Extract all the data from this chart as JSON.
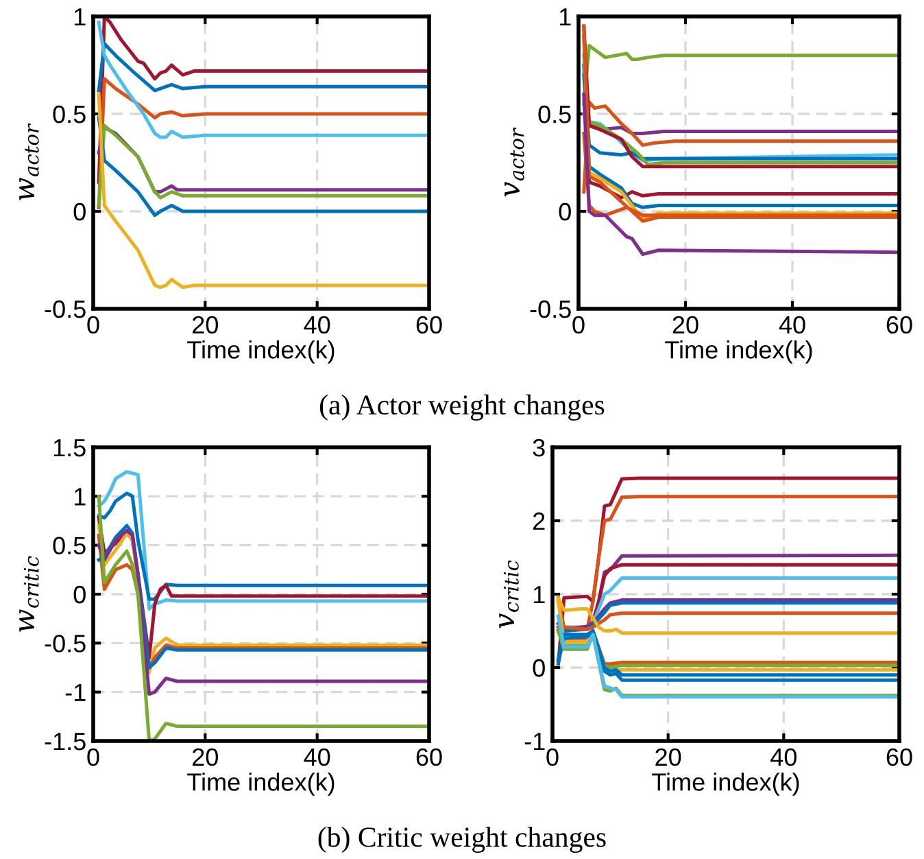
{
  "chart_data": [
    {
      "type": "line",
      "ylabel": "w$_{actor}$",
      "xlabel": "Time index(k)",
      "annotations": [
        "(a) Actor weight changes"
      ],
      "xlim": [
        0,
        60
      ],
      "xticks": [
        0,
        20,
        40,
        60
      ],
      "ylim": [
        -0.5,
        1
      ],
      "yticks": [
        -0.5,
        0,
        0.5,
        1
      ],
      "grid": true,
      "line_style": "solid",
      "series": [
        {
          "color": "#a2142f",
          "x": [
            1,
            2,
            3,
            5,
            8,
            9,
            11,
            12,
            13,
            14,
            16,
            18,
            20,
            60
          ],
          "values": [
            0.15,
            1.0,
            0.97,
            0.88,
            0.77,
            0.76,
            0.68,
            0.71,
            0.72,
            0.75,
            0.7,
            0.72,
            0.72,
            0.72
          ]
        },
        {
          "color": "#0072bd",
          "x": [
            1,
            2,
            4,
            7,
            11,
            12,
            14,
            16,
            20,
            60
          ],
          "values": [
            0.62,
            0.86,
            0.8,
            0.72,
            0.62,
            0.63,
            0.65,
            0.63,
            0.64,
            0.64
          ]
        },
        {
          "color": "#d95319",
          "x": [
            1,
            2,
            4,
            8,
            11,
            12,
            14,
            16,
            20,
            60
          ],
          "values": [
            0.02,
            0.68,
            0.63,
            0.55,
            0.48,
            0.5,
            0.51,
            0.49,
            0.5,
            0.5
          ]
        },
        {
          "color": "#4dbeee",
          "x": [
            1,
            2,
            3,
            6,
            9,
            11,
            12,
            13,
            14,
            16,
            20,
            60
          ],
          "values": [
            0.97,
            0.8,
            0.75,
            0.62,
            0.5,
            0.4,
            0.38,
            0.38,
            0.41,
            0.38,
            0.39,
            0.39
          ]
        },
        {
          "color": "#7e2f8e",
          "x": [
            1,
            2,
            4,
            8,
            11,
            12,
            14,
            15,
            20,
            60
          ],
          "values": [
            0.3,
            0.43,
            0.4,
            0.28,
            0.1,
            0.1,
            0.13,
            0.11,
            0.11,
            0.11
          ]
        },
        {
          "color": "#77ac30",
          "x": [
            1,
            2,
            4,
            8,
            11,
            12,
            14,
            16,
            20,
            60
          ],
          "values": [
            0.03,
            0.44,
            0.39,
            0.28,
            0.1,
            0.07,
            0.1,
            0.08,
            0.08,
            0.08
          ]
        },
        {
          "color": "#0072bd",
          "x": [
            1,
            2,
            4,
            8,
            11,
            12,
            14,
            16,
            20,
            60
          ],
          "values": [
            0.48,
            0.26,
            0.21,
            0.1,
            -0.02,
            0.0,
            0.03,
            0.0,
            0.0,
            0.0
          ]
        },
        {
          "color": "#edb120",
          "x": [
            1,
            2,
            4,
            8,
            11,
            12,
            13,
            14,
            16,
            18,
            20,
            60
          ],
          "values": [
            0.6,
            0.03,
            -0.05,
            -0.2,
            -0.38,
            -0.39,
            -0.38,
            -0.35,
            -0.39,
            -0.38,
            -0.38,
            -0.38
          ]
        }
      ]
    },
    {
      "type": "line",
      "ylabel": "v$_{actor}$",
      "xlabel": "Time index(k)",
      "xlim": [
        0,
        60
      ],
      "xticks": [
        0,
        20,
        40,
        60
      ],
      "ylim": [
        -0.5,
        1
      ],
      "yticks": [
        -0.5,
        0,
        0.5,
        1
      ],
      "grid": true,
      "line_style": "solid",
      "series": [
        {
          "color": "#77ac30",
          "x": [
            1,
            2,
            3,
            5,
            9,
            10,
            11,
            13,
            16,
            20,
            60
          ],
          "values": [
            0.55,
            0.85,
            0.83,
            0.79,
            0.81,
            0.78,
            0.78,
            0.79,
            0.8,
            0.8,
            0.8
          ]
        },
        {
          "color": "#7e2f8e",
          "x": [
            1,
            2,
            4,
            8,
            10,
            12,
            16,
            20,
            60
          ],
          "values": [
            0.5,
            0.45,
            0.42,
            0.43,
            0.4,
            0.4,
            0.41,
            0.41,
            0.41
          ]
        },
        {
          "color": "#d95319",
          "x": [
            1,
            2,
            3,
            5,
            8,
            10,
            12,
            14,
            18,
            60
          ],
          "values": [
            0.1,
            0.56,
            0.53,
            0.54,
            0.45,
            0.4,
            0.34,
            0.35,
            0.36,
            0.36
          ]
        },
        {
          "color": "#4dbeee",
          "x": [
            1,
            2,
            4,
            7,
            10,
            12,
            16,
            60
          ],
          "values": [
            0.8,
            0.46,
            0.45,
            0.38,
            0.3,
            0.26,
            0.27,
            0.29
          ]
        },
        {
          "color": "#0072bd",
          "x": [
            1,
            2,
            4,
            8,
            10,
            12,
            16,
            60
          ],
          "values": [
            0.7,
            0.34,
            0.3,
            0.29,
            0.3,
            0.27,
            0.27,
            0.27
          ]
        },
        {
          "color": "#77ac30",
          "x": [
            1,
            2,
            4,
            8,
            11,
            13,
            16,
            60
          ],
          "values": [
            0.5,
            0.46,
            0.44,
            0.37,
            0.3,
            0.24,
            0.25,
            0.25
          ]
        },
        {
          "color": "#a2142f",
          "x": [
            1,
            2,
            4,
            8,
            10,
            12,
            16,
            60
          ],
          "values": [
            0.95,
            0.44,
            0.42,
            0.37,
            0.28,
            0.23,
            0.23,
            0.23
          ]
        },
        {
          "color": "#a2142f",
          "x": [
            1,
            2,
            4,
            8,
            10,
            12,
            15,
            60
          ],
          "values": [
            0.9,
            0.15,
            0.13,
            0.07,
            0.1,
            0.08,
            0.09,
            0.09
          ]
        },
        {
          "color": "#0072bd",
          "x": [
            1,
            2,
            4,
            8,
            10,
            12,
            15,
            60
          ],
          "values": [
            0.75,
            0.23,
            0.19,
            0.12,
            0.04,
            0.02,
            0.03,
            0.03
          ]
        },
        {
          "color": "#edb120",
          "x": [
            1,
            2,
            4,
            8,
            10,
            12,
            15,
            60
          ],
          "values": [
            0.9,
            0.2,
            0.17,
            0.1,
            0.03,
            -0.04,
            -0.01,
            -0.01
          ]
        },
        {
          "color": "#d95319",
          "x": [
            1,
            2,
            4,
            8,
            10,
            12,
            15,
            60
          ],
          "values": [
            0.95,
            0.18,
            0.15,
            0.05,
            0.0,
            -0.05,
            -0.03,
            -0.03
          ]
        },
        {
          "color": "#d95319",
          "x": [
            1,
            2,
            3,
            5,
            9,
            12,
            15,
            60
          ],
          "values": [
            0.4,
            0.03,
            0.0,
            -0.02,
            0.02,
            -0.02,
            -0.02,
            -0.02
          ]
        },
        {
          "color": "#7e2f8e",
          "x": [
            1,
            2,
            3,
            5,
            9,
            10,
            12,
            15,
            60
          ],
          "values": [
            0.6,
            0.0,
            -0.02,
            -0.02,
            -0.13,
            -0.14,
            -0.22,
            -0.2,
            -0.21
          ]
        }
      ]
    },
    {
      "type": "line",
      "ylabel": "w$_{critic}$",
      "xlabel": "Time index(k)",
      "annotations": [
        "(b) Critic weight changes"
      ],
      "xlim": [
        0,
        60
      ],
      "xticks": [
        0,
        20,
        40,
        60
      ],
      "ylim": [
        -1.5,
        1.5
      ],
      "yticks": [
        -1.5,
        -1,
        -0.5,
        0,
        0.5,
        1,
        1.5
      ],
      "grid": true,
      "line_style": "solid",
      "series": [
        {
          "color": "#4dbeee",
          "x": [
            1,
            2,
            3,
            4,
            6,
            8,
            10,
            11,
            13,
            15,
            60
          ],
          "values": [
            0.9,
            0.95,
            1.05,
            1.18,
            1.25,
            1.22,
            -0.15,
            -0.1,
            -0.06,
            -0.07,
            -0.07
          ]
        },
        {
          "color": "#0072bd",
          "x": [
            1,
            2,
            3,
            4,
            6,
            7,
            8,
            10,
            11,
            13,
            15,
            60
          ],
          "values": [
            0.8,
            0.78,
            0.85,
            0.95,
            1.03,
            1.0,
            0.55,
            -0.05,
            -0.05,
            0.1,
            0.09,
            0.09
          ]
        },
        {
          "color": "#a2142f",
          "x": [
            1,
            2,
            4,
            6,
            7,
            8,
            10,
            11,
            12,
            13,
            14,
            60
          ],
          "values": [
            0.78,
            0.42,
            0.52,
            0.64,
            0.55,
            0.2,
            -0.65,
            -0.1,
            0.05,
            0.09,
            -0.02,
            -0.02
          ]
        },
        {
          "color": "#edb120",
          "x": [
            1,
            2,
            4,
            6,
            7,
            8,
            10,
            11,
            13,
            15,
            60
          ],
          "values": [
            0.7,
            0.3,
            0.45,
            0.62,
            0.55,
            0.15,
            -0.8,
            -0.55,
            -0.45,
            -0.52,
            -0.52
          ]
        },
        {
          "color": "#d95319",
          "x": [
            1,
            2,
            4,
            6,
            7,
            8,
            10,
            11,
            13,
            15,
            60
          ],
          "values": [
            0.6,
            0.05,
            0.25,
            0.3,
            0.25,
            0.0,
            -0.75,
            -0.65,
            -0.52,
            -0.55,
            -0.55
          ]
        },
        {
          "color": "#0072bd",
          "x": [
            1,
            2,
            4,
            6,
            7,
            8,
            10,
            11,
            13,
            15,
            60
          ],
          "values": [
            0.35,
            0.38,
            0.58,
            0.7,
            0.62,
            0.2,
            -0.75,
            -0.7,
            -0.55,
            -0.57,
            -0.57
          ]
        },
        {
          "color": "#7e2f8e",
          "x": [
            1,
            2,
            4,
            6,
            7,
            8,
            10,
            11,
            13,
            15,
            60
          ],
          "values": [
            0.5,
            0.35,
            0.55,
            0.65,
            0.6,
            0.2,
            -1.02,
            -1.0,
            -0.86,
            -0.89,
            -0.89
          ]
        },
        {
          "color": "#77ac30",
          "x": [
            1,
            2,
            4,
            6,
            7,
            8,
            10,
            11,
            13,
            15,
            60
          ],
          "values": [
            1.0,
            0.12,
            0.3,
            0.44,
            0.3,
            0.0,
            -1.5,
            -1.48,
            -1.32,
            -1.35,
            -1.35
          ]
        }
      ]
    },
    {
      "type": "line",
      "ylabel": "v$_{critic}$",
      "xlabel": "Time index(k)",
      "xlim": [
        0,
        60
      ],
      "xticks": [
        0,
        20,
        40,
        60
      ],
      "ylim": [
        -1,
        3
      ],
      "yticks": [
        -1,
        0,
        1,
        2,
        3
      ],
      "grid": true,
      "line_style": "solid",
      "series": [
        {
          "color": "#a2142f",
          "x": [
            1,
            2,
            6,
            7,
            8,
            9,
            10,
            12,
            15,
            60
          ],
          "values": [
            0.05,
            0.95,
            0.97,
            0.9,
            1.5,
            2.2,
            2.22,
            2.57,
            2.58,
            2.58
          ]
        },
        {
          "color": "#d95319",
          "x": [
            1,
            2,
            6,
            7,
            8,
            9,
            10,
            12,
            15,
            60
          ],
          "values": [
            0.95,
            0.5,
            0.52,
            0.9,
            1.5,
            2.0,
            2.02,
            2.32,
            2.33,
            2.33
          ]
        },
        {
          "color": "#7e2f8e",
          "x": [
            1,
            2,
            6,
            7,
            8,
            9,
            10,
            12,
            60
          ],
          "values": [
            0.6,
            0.55,
            0.55,
            0.62,
            0.9,
            1.3,
            1.33,
            1.52,
            1.53
          ]
        },
        {
          "color": "#a2142f",
          "x": [
            1,
            2,
            6,
            7,
            8,
            9,
            10,
            12,
            60
          ],
          "values": [
            0.5,
            0.5,
            0.55,
            0.6,
            0.9,
            1.25,
            1.35,
            1.4,
            1.4
          ]
        },
        {
          "color": "#4dbeee",
          "x": [
            1,
            2,
            6,
            7,
            8,
            9,
            10,
            12,
            60
          ],
          "values": [
            0.7,
            0.55,
            0.55,
            0.6,
            0.8,
            1.0,
            1.05,
            1.22,
            1.22
          ]
        },
        {
          "color": "#7e2f8e",
          "x": [
            1,
            2,
            6,
            7,
            9,
            10,
            12,
            60
          ],
          "values": [
            0.5,
            0.52,
            0.56,
            0.6,
            0.8,
            0.88,
            0.92,
            0.92
          ]
        },
        {
          "color": "#0072bd",
          "x": [
            1,
            2,
            6,
            7,
            9,
            10,
            12,
            60
          ],
          "values": [
            0.1,
            0.5,
            0.53,
            0.58,
            0.75,
            0.85,
            0.88,
            0.88
          ]
        },
        {
          "color": "#d95319",
          "x": [
            1,
            2,
            6,
            7,
            9,
            10,
            12,
            60
          ],
          "values": [
            0.9,
            0.55,
            0.52,
            0.55,
            0.65,
            0.72,
            0.74,
            0.74
          ]
        },
        {
          "color": "#edb120",
          "x": [
            1,
            2,
            5,
            6,
            8,
            9,
            10,
            11,
            12,
            60
          ],
          "values": [
            0.95,
            0.78,
            0.8,
            0.8,
            0.55,
            0.5,
            0.5,
            0.52,
            0.47,
            0.47
          ]
        },
        {
          "color": "#d95319",
          "x": [
            1,
            2,
            6,
            7,
            9,
            10,
            12,
            60
          ],
          "values": [
            0.55,
            0.4,
            0.4,
            0.5,
            0.05,
            0.05,
            0.07,
            0.07
          ]
        },
        {
          "color": "#77ac30",
          "x": [
            1,
            2,
            6,
            7,
            9,
            10,
            12,
            60
          ],
          "values": [
            0.5,
            0.3,
            0.3,
            0.48,
            0.02,
            0.0,
            0.03,
            0.03
          ]
        },
        {
          "color": "#edb120",
          "x": [
            1,
            2,
            6,
            7,
            9,
            10,
            12,
            60
          ],
          "values": [
            0.9,
            0.35,
            0.35,
            0.5,
            -0.05,
            -0.05,
            -0.03,
            -0.03
          ]
        },
        {
          "color": "#0072bd",
          "x": [
            1,
            2,
            6,
            7,
            9,
            10,
            11,
            12,
            60
          ],
          "values": [
            0.05,
            0.45,
            0.45,
            0.5,
            0.0,
            -0.05,
            -0.03,
            -0.1,
            -0.1
          ]
        },
        {
          "color": "#0072bd",
          "x": [
            1,
            2,
            6,
            7,
            9,
            10,
            11,
            12,
            60
          ],
          "values": [
            0.1,
            0.4,
            0.42,
            0.5,
            -0.05,
            -0.1,
            -0.08,
            -0.17,
            -0.17
          ]
        },
        {
          "color": "#77ac30",
          "x": [
            1,
            2,
            6,
            7,
            9,
            10,
            11,
            12,
            60
          ],
          "values": [
            0.5,
            0.25,
            0.25,
            0.45,
            -0.3,
            -0.32,
            -0.28,
            -0.38,
            -0.38
          ]
        },
        {
          "color": "#4dbeee",
          "x": [
            1,
            2,
            6,
            7,
            9,
            10,
            11,
            12,
            60
          ],
          "values": [
            0.7,
            0.28,
            0.28,
            0.45,
            -0.25,
            -0.28,
            -0.3,
            -0.4,
            -0.4
          ]
        }
      ]
    }
  ]
}
